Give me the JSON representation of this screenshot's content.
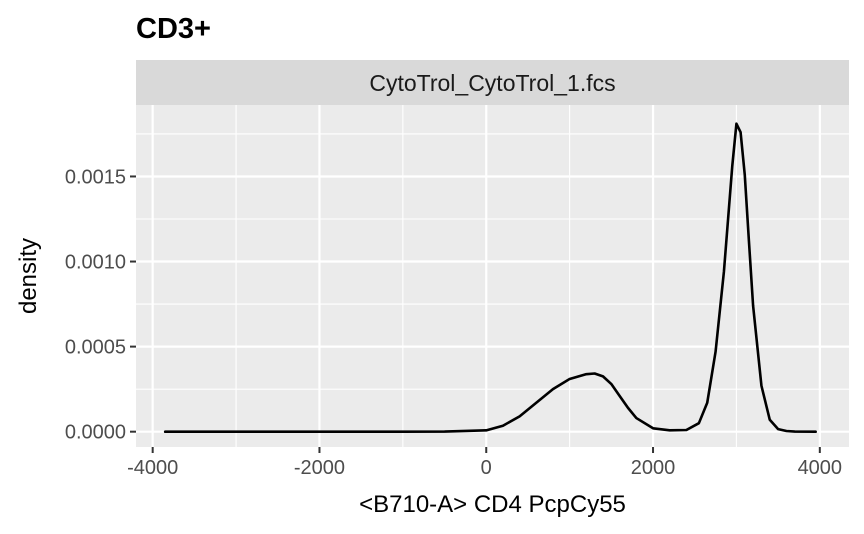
{
  "chart_data": {
    "type": "line",
    "title": "CD3+",
    "facet_label": "CytoTrol_CytoTrol_1.fcs",
    "xlabel": "<B710-A> CD4 PcpCy55",
    "ylabel": "density",
    "xlim": [
      -4200,
      4350
    ],
    "ylim": [
      -9e-05,
      0.00192
    ],
    "x_ticks": [
      -4000,
      -2000,
      0,
      2000,
      4000
    ],
    "x_tick_labels": [
      "-4000",
      "-2000",
      "0",
      "2000",
      "4000"
    ],
    "y_ticks": [
      0.0,
      0.0005,
      0.001,
      0.0015
    ],
    "y_tick_labels": [
      "0.0000",
      "0.0005",
      "0.0010",
      "0.0015"
    ],
    "grid": true,
    "panel_background": "#ebebeb",
    "strip_background": "#d9d9d9",
    "line_color": "#000000",
    "series": [
      {
        "x": [
          -3850,
          -3000,
          -2000,
          -1000,
          -500,
          0,
          200,
          400,
          600,
          800,
          1000,
          1200,
          1300,
          1400,
          1500,
          1600,
          1700,
          1800,
          2000,
          2200,
          2400,
          2550,
          2650,
          2750,
          2850,
          2950,
          3000,
          3050,
          3100,
          3150,
          3200,
          3300,
          3400,
          3500,
          3600,
          3700,
          3950
        ],
        "y": [
          0,
          0,
          0,
          0,
          1e-06,
          8e-06,
          3.5e-05,
          9e-05,
          0.00017,
          0.00025,
          0.00031,
          0.000338,
          0.000342,
          0.000325,
          0.00028,
          0.00021,
          0.00014,
          8e-05,
          2e-05,
          8e-06,
          1e-05,
          5e-05,
          0.00017,
          0.00047,
          0.00094,
          0.00156,
          0.00181,
          0.00176,
          0.00151,
          0.00112,
          0.00074,
          0.00027,
          7e-05,
          1.5e-05,
          4e-06,
          1e-06,
          0
        ]
      }
    ]
  }
}
